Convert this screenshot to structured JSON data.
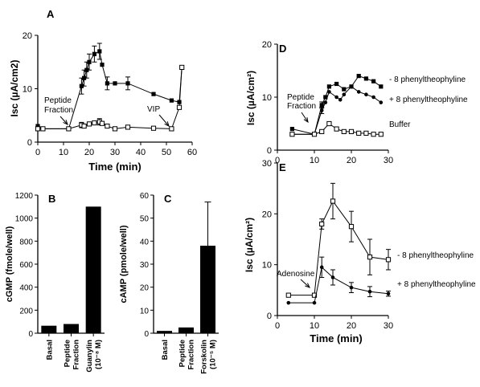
{
  "chart_data": [
    {
      "panel": "A",
      "type": "line",
      "ylabel": "Isc (µA/cm2)",
      "xlabel": "Time (min)",
      "xlim": [
        0,
        60
      ],
      "ylim": [
        0,
        20
      ],
      "xticks": [
        "0",
        "10",
        "20",
        "30",
        "40",
        "50",
        "60"
      ],
      "yticks": [
        "0",
        "10",
        "20"
      ],
      "series": [
        {
          "marker": "filled-square",
          "x": [
            0,
            2,
            12,
            17,
            18,
            19,
            20,
            22,
            24,
            25,
            27,
            30,
            35,
            45,
            52,
            55,
            56
          ],
          "y": [
            3.0,
            2.5,
            2.5,
            10.5,
            12.0,
            13.5,
            15.0,
            16.5,
            17.0,
            14.5,
            11.0,
            11.0,
            11.0,
            9.0,
            7.8,
            7.5,
            14.0
          ],
          "err": [
            0,
            0,
            0,
            1.5,
            1.5,
            1.5,
            1.5,
            1.5,
            1.5,
            0,
            1.2,
            0,
            1.2,
            0,
            0,
            0,
            0
          ]
        },
        {
          "marker": "open-square",
          "x": [
            0,
            2,
            12,
            17,
            18,
            20,
            22,
            24,
            25,
            27,
            30,
            35,
            45,
            52,
            55,
            56
          ],
          "y": [
            2.5,
            2.5,
            2.5,
            3.2,
            3.0,
            3.4,
            3.6,
            3.8,
            3.5,
            3.0,
            2.5,
            2.8,
            2.6,
            2.5,
            6.5,
            14.0
          ],
          "err": [
            0,
            0,
            0,
            0.5,
            0,
            0,
            0,
            0.6,
            0,
            0,
            0,
            0,
            0,
            0,
            0,
            0
          ]
        }
      ],
      "annotations": [
        "Peptide",
        "Fraction",
        "VIP"
      ]
    },
    {
      "panel": "B",
      "type": "bar",
      "ylabel": "cGMP  (fmole/well)",
      "ylim": [
        0,
        1200
      ],
      "yticks": [
        "0",
        "200",
        "400",
        "600",
        "800",
        "1000",
        "1200"
      ],
      "categories": [
        [
          "Basal"
        ],
        [
          "Peptide",
          "Fraction"
        ],
        [
          "Guanylin",
          "(10⁻⁸ M)"
        ]
      ],
      "values": [
        65,
        80,
        1100
      ]
    },
    {
      "panel": "C",
      "type": "bar",
      "ylabel": "cAMP  (pmole/well)",
      "ylim": [
        0,
        60
      ],
      "yticks": [
        "0",
        "10",
        "20",
        "30",
        "40",
        "50",
        "60"
      ],
      "categories": [
        [
          "Basal"
        ],
        [
          "Peptide",
          "Fraction"
        ],
        [
          "Forskolin",
          "(10⁻⁵ M)"
        ]
      ],
      "values": [
        1,
        2.5,
        38
      ],
      "errors": [
        0,
        0,
        19
      ]
    },
    {
      "panel": "D",
      "type": "line",
      "ylabel": "Isc (µA/cm²)",
      "xlim": [
        0,
        30
      ],
      "ylim": [
        0,
        20
      ],
      "xticks": [
        "0",
        "10",
        "20",
        "30"
      ],
      "yticks": [
        "0",
        "10",
        "20"
      ],
      "series": [
        {
          "name": "- 8 phenyltheophyline",
          "marker": "filled-square",
          "x": [
            4,
            10,
            12,
            13,
            14,
            16,
            18,
            20,
            22,
            24,
            26,
            28
          ],
          "y": [
            4.0,
            3.0,
            8.5,
            10.0,
            12.0,
            12.5,
            11.5,
            12.0,
            14.0,
            13.5,
            13.0,
            12.0
          ],
          "err": [
            0,
            0,
            0.6,
            0,
            0,
            0,
            0,
            0,
            0,
            0,
            0,
            0
          ]
        },
        {
          "name": "+ 8 phenyltheophyline",
          "marker": "filled-circle",
          "x": [
            4,
            10,
            12,
            13,
            14,
            16,
            17,
            18,
            20,
            22,
            24,
            26,
            28
          ],
          "y": [
            3.0,
            3.0,
            7.5,
            9.0,
            11.0,
            10.0,
            9.5,
            10.5,
            12.0,
            11.0,
            10.5,
            10.0,
            9.0
          ],
          "err": [
            0,
            0,
            0.6,
            0,
            0,
            0,
            0,
            0,
            0,
            0,
            0,
            0,
            0
          ]
        },
        {
          "name": "Buffer",
          "marker": "open-square",
          "x": [
            4,
            10,
            12,
            14,
            16,
            18,
            20,
            22,
            24,
            26,
            28
          ],
          "y": [
            3.0,
            3.0,
            3.5,
            5.0,
            4.0,
            3.5,
            3.5,
            3.2,
            3.2,
            3.0,
            3.0
          ],
          "err": [
            0,
            0,
            0,
            0,
            0,
            0,
            0,
            0,
            0,
            0,
            0
          ]
        }
      ],
      "annotations": [
        "Peptide",
        "Fraction"
      ]
    },
    {
      "panel": "E",
      "type": "line",
      "ylabel": "Isc (µA/cm²)",
      "xlabel": "Time  (min)",
      "xlim": [
        0,
        30
      ],
      "ylim": [
        0,
        30
      ],
      "xticks": [
        "0",
        "10",
        "20",
        "30"
      ],
      "yticks": [
        "0",
        "10",
        "20",
        "30"
      ],
      "series": [
        {
          "name": "- 8 phenyltheophyline",
          "marker": "open-square",
          "x": [
            3,
            10,
            12,
            15,
            20,
            25,
            30
          ],
          "y": [
            4.0,
            4.0,
            18.0,
            22.5,
            17.5,
            11.5,
            11.0
          ],
          "err": [
            0,
            0,
            1.0,
            3.5,
            3.0,
            3.5,
            2.0
          ]
        },
        {
          "name": "+ 8 phenyltheophyline",
          "marker": "filled-circle",
          "x": [
            3,
            10,
            12,
            15,
            20,
            25,
            30
          ],
          "y": [
            2.5,
            2.5,
            9.5,
            7.5,
            5.5,
            4.7,
            4.3
          ],
          "err": [
            0,
            0,
            2.0,
            1.5,
            1.0,
            1.0,
            0.5
          ]
        }
      ],
      "annotations": [
        "Adenosine"
      ]
    }
  ]
}
